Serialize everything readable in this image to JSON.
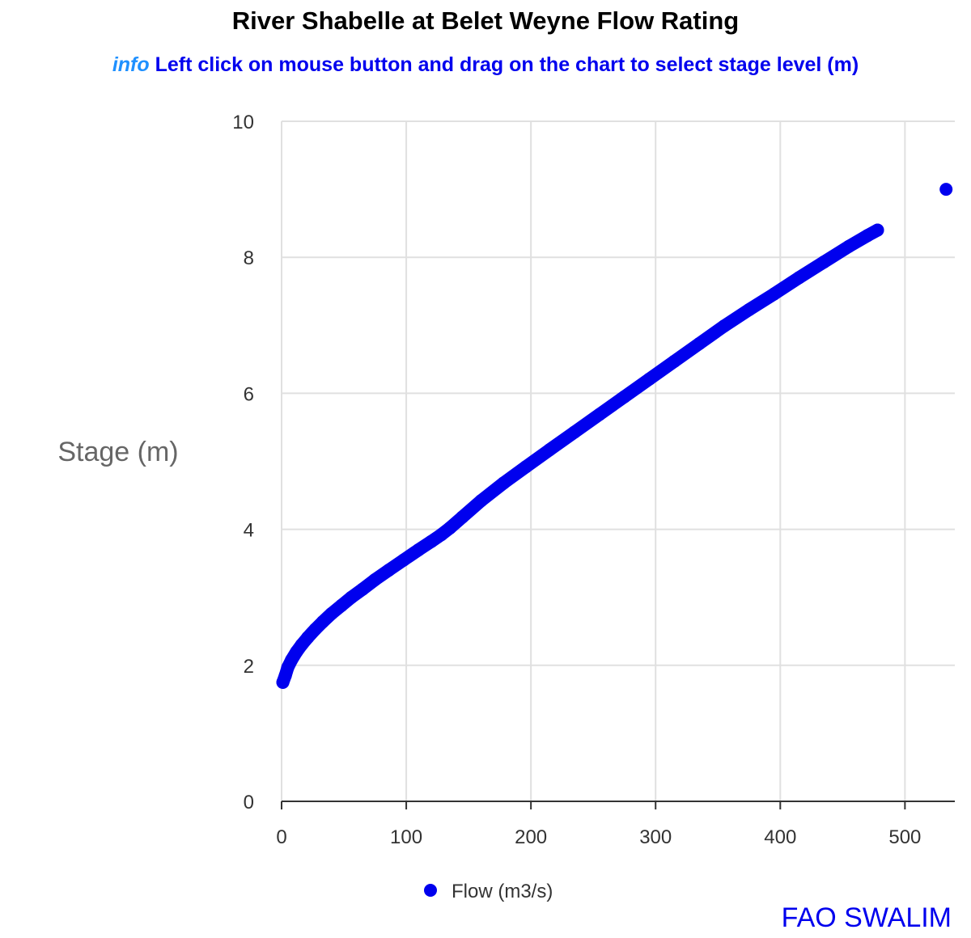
{
  "chart_data": {
    "type": "scatter",
    "title": "River Shabelle at Belet Weyne Flow Rating",
    "subtitle_tag": "info",
    "subtitle": "Left click on mouse button and drag on the chart to select stage level (m)",
    "xlabel": "",
    "ylabel": "Stage (m)",
    "xlim": [
      0,
      540
    ],
    "ylim": [
      0,
      10
    ],
    "x_ticks": [
      0,
      100,
      200,
      300,
      400,
      500
    ],
    "y_ticks": [
      0,
      2,
      4,
      6,
      8,
      10
    ],
    "grid": true,
    "legend_position": "bottom",
    "color": "#0000ee",
    "credit": "FAO SWALIM",
    "series": [
      {
        "name": "Flow (m3/s)",
        "points": [
          [
            1,
            1.75
          ],
          [
            3,
            1.85
          ],
          [
            5,
            1.97
          ],
          [
            8,
            2.08
          ],
          [
            12,
            2.2
          ],
          [
            16,
            2.3
          ],
          [
            21,
            2.41
          ],
          [
            27,
            2.53
          ],
          [
            33,
            2.64
          ],
          [
            40,
            2.76
          ],
          [
            48,
            2.88
          ],
          [
            56,
            3.0
          ],
          [
            65,
            3.12
          ],
          [
            75,
            3.26
          ],
          [
            86,
            3.4
          ],
          [
            98,
            3.55
          ],
          [
            110,
            3.7
          ],
          [
            120,
            3.82
          ],
          [
            128,
            3.92
          ],
          [
            135,
            4.02
          ],
          [
            145,
            4.18
          ],
          [
            160,
            4.42
          ],
          [
            178,
            4.68
          ],
          [
            196,
            4.92
          ],
          [
            215,
            5.17
          ],
          [
            235,
            5.43
          ],
          [
            255,
            5.69
          ],
          [
            275,
            5.95
          ],
          [
            295,
            6.21
          ],
          [
            315,
            6.47
          ],
          [
            335,
            6.73
          ],
          [
            355,
            6.99
          ],
          [
            375,
            7.23
          ],
          [
            395,
            7.46
          ],
          [
            415,
            7.7
          ],
          [
            435,
            7.93
          ],
          [
            455,
            8.16
          ],
          [
            470,
            8.32
          ],
          [
            478,
            8.4
          ],
          [
            533,
            9.0
          ]
        ]
      }
    ]
  }
}
